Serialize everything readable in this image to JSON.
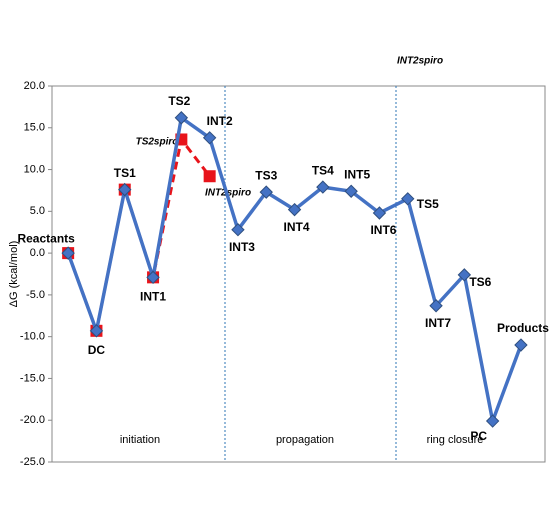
{
  "chart_data": {
    "type": "line",
    "ylabel": "ΔG (kcal/mol)",
    "categories": [
      "Reactants",
      "DC",
      "TS1",
      "INT1",
      "TS2",
      "INT2",
      "INT3",
      "TS3",
      "INT4",
      "TS4",
      "INT5",
      "INT6",
      "TS5",
      "INT7",
      "TS6",
      "PC",
      "Products"
    ],
    "series": [
      {
        "color": "#e8141b",
        "values": [
          0,
          -9.3,
          7.6,
          -2.9,
          13.6,
          9.2,
          null,
          null,
          null,
          null,
          null,
          null,
          null,
          null,
          null,
          null,
          null
        ]
      },
      {
        "color": "#4472c4",
        "values": [
          0,
          -9.3,
          7.6,
          -2.9,
          16.2,
          13.8,
          2.8,
          7.3,
          5.2,
          7.9,
          7.4,
          4.8,
          6.5,
          -6.3,
          -2.6,
          -20.1,
          -11.0
        ]
      }
    ],
    "annotations": [
      "TS2spiro",
      "INT2spiro",
      "INT2spiro"
    ],
    "regions": [
      "initiation",
      "propagation",
      "ring closure"
    ],
    "ylim": [
      -25,
      20
    ],
    "yticks": [
      {
        "value": 20,
        "label": "20.0"
      },
      {
        "value": 15,
        "label": "15.0"
      },
      {
        "value": 10,
        "label": "10.0"
      },
      {
        "value": 5,
        "label": "5.0"
      },
      {
        "value": 0,
        "label": "0.0"
      },
      {
        "value": -5,
        "label": "-5.0"
      },
      {
        "value": -10,
        "label": "-10.0"
      },
      {
        "value": -15,
        "label": "-15.0"
      },
      {
        "value": -20,
        "label": "-20.0"
      },
      {
        "value": -25,
        "label": "-25.0"
      }
    ]
  }
}
